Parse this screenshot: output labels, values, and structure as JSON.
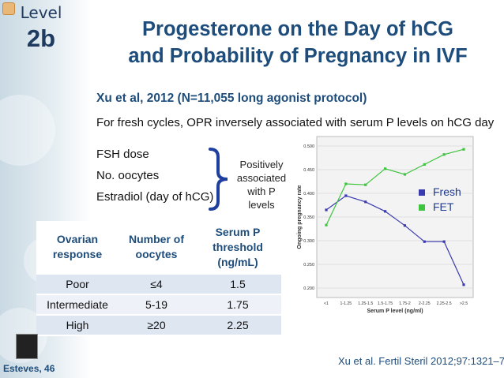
{
  "slide": {
    "level_label": "Level",
    "level_value": "2b",
    "title_line1": "Progesterone on the Day of hCG",
    "title_line2": "and Probability of Pregnancy in IVF",
    "subtitle": "Xu et al, 2012 (N=11,055 long agonist protocol)",
    "statement": "For fresh cycles, OPR inversely associated with serum P levels on hCG day",
    "factors": [
      "FSH dose",
      "No. oocytes",
      "Estradiol (day of hCG)"
    ],
    "brace_note": [
      "Positively",
      "associated",
      "with P levels"
    ],
    "author": "Esteves, 46",
    "citation": "Xu et al. Fertil Steril 2012;97:1321–7."
  },
  "table": {
    "headers": [
      "Ovarian response",
      "Number of oocytes",
      "Serum P threshold (ng/mL)"
    ],
    "rows": [
      [
        "Poor",
        "≤4",
        "1.5"
      ],
      [
        "Intermediate",
        "5-19",
        "1.75"
      ],
      [
        "High",
        "≥20",
        "2.25"
      ]
    ]
  },
  "chart_data": {
    "type": "line",
    "xlabel": "Serum P level (ng/ml)",
    "ylabel": "Ongoing pregnancy rate",
    "categories": [
      "<1",
      "1-1.25",
      "1.25-1.5",
      "1.5-1.75",
      "1.75-2",
      "2-2.25",
      "2.25-2.5",
      ">2.5"
    ],
    "ylim": [
      0.2,
      0.5
    ],
    "yticks": [
      "0.200",
      "0.250",
      "0.300",
      "0.350",
      "0.400",
      "0.450",
      "0.500"
    ],
    "series": [
      {
        "name": "Fresh",
        "color": "#3a3ab0",
        "values": [
          0.365,
          0.395,
          0.382,
          0.362,
          0.332,
          0.298,
          0.298,
          0.207
        ]
      },
      {
        "name": "FET",
        "color": "#3ec43e",
        "values": [
          0.333,
          0.42,
          0.418,
          0.452,
          0.44,
          0.461,
          0.482,
          0.493
        ]
      }
    ]
  },
  "legend": {
    "fresh": "Fresh",
    "fet": "FET",
    "fresh_color": "#3a3ab0",
    "fet_color": "#3ec43e"
  }
}
